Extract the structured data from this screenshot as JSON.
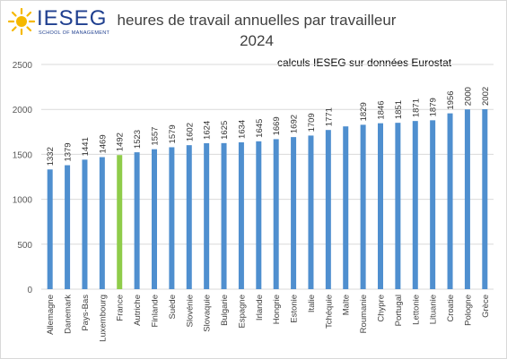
{
  "logo": {
    "name": "IESEG",
    "tagline": "SCHOOL OF MANAGEMENT"
  },
  "title_line1": "heures de travail annuelles par travailleur",
  "title_line2": "2024",
  "source_note": "calculs IESEG sur données Eurostat",
  "colors": {
    "bar": "#4f8fcf",
    "highlight": "#8fcc4a",
    "grid": "#d9d9d9",
    "axis_text": "#595959"
  },
  "chart_data": {
    "type": "bar",
    "title": "heures de travail annuelles par travailleur 2024",
    "xlabel": "",
    "ylabel": "",
    "ylim": [
      0,
      2500
    ],
    "yticks": [
      0,
      500,
      1000,
      1500,
      2000,
      2500
    ],
    "grid": true,
    "highlight_category": "France",
    "categories": [
      "Allemagne",
      "Danemark",
      "Pays-Bas",
      "Luxembourg",
      "France",
      "Autriche",
      "Finlande",
      "Suède",
      "Slovénie",
      "Slovaquie",
      "Bulgarie",
      "Espagne",
      "Irlande",
      "Hongrie",
      "Estonie",
      "Italie",
      "Tchéquie",
      "Malte",
      "Roumanie",
      "Chypre",
      "Portugal",
      "Lettonie",
      "Lituanie",
      "Croatie",
      "Pologne",
      "Grèce"
    ],
    "values": [
      1332,
      1379,
      1441,
      1469,
      1492,
      1523,
      1557,
      1579,
      1602,
      1624,
      1625,
      1634,
      1645,
      1669,
      1692,
      1709,
      1771,
      1811,
      1829,
      1846,
      1851,
      1871,
      1879,
      1956,
      2000,
      2002
    ],
    "value_labels": [
      "1332",
      "1379",
      "1441",
      "1469",
      "1492",
      "1523",
      "1557",
      "1579",
      "1602",
      "1624",
      "1625",
      "1634",
      "1645",
      "1669",
      "1692",
      "1709",
      "1771",
      "",
      "1829",
      "1846",
      "1851",
      "1871",
      "1879",
      "1956",
      "2000",
      "2002"
    ]
  }
}
